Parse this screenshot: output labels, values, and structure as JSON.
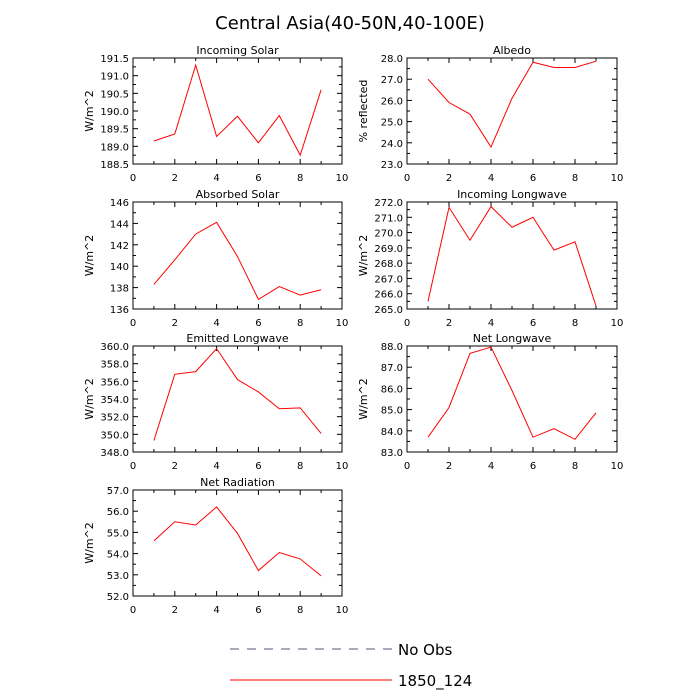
{
  "figure": {
    "title": "Central Asia(40-50N,40-100E)",
    "legend": [
      {
        "label": "No Obs",
        "color": "#555577",
        "dash": true
      },
      {
        "label": "1850_124",
        "color": "#ff0000",
        "dash": false
      }
    ]
  },
  "chart_data": [
    {
      "type": "line",
      "title": "Incoming Solar",
      "ylabel": "W/m^2",
      "xlim": [
        0,
        10
      ],
      "ylim": [
        188.5,
        191.5
      ],
      "xticks": [
        0,
        2,
        4,
        6,
        8,
        10
      ],
      "xtick_labels": [
        "0",
        "2",
        "4",
        "6",
        "8",
        "10"
      ],
      "yticks": [
        188.5,
        189.0,
        189.5,
        190.0,
        190.5,
        191.0,
        191.5
      ],
      "ytick_labels": [
        "188.5",
        "189.0",
        "189.5",
        "190.0",
        "190.5",
        "191.0",
        "191.5"
      ],
      "x": [
        1,
        2,
        3,
        4,
        5,
        6,
        7,
        8,
        9
      ],
      "series": [
        {
          "values": [
            189.15,
            189.35,
            191.3,
            189.28,
            189.85,
            189.1,
            189.87,
            188.75,
            190.6
          ],
          "color": "#ff0000"
        }
      ]
    },
    {
      "type": "line",
      "title": "Albedo",
      "ylabel": "% reflected",
      "xlim": [
        0,
        10
      ],
      "ylim": [
        23.0,
        28.0
      ],
      "xticks": [
        0,
        2,
        4,
        6,
        8,
        10
      ],
      "xtick_labels": [
        "0",
        "2",
        "4",
        "6",
        "8",
        "10"
      ],
      "yticks": [
        23.0,
        24.0,
        25.0,
        26.0,
        27.0,
        28.0
      ],
      "ytick_labels": [
        "23.0",
        "24.0",
        "25.0",
        "26.0",
        "27.0",
        "28.0"
      ],
      "x": [
        1,
        2,
        3,
        4,
        5,
        6,
        7,
        8,
        9
      ],
      "series": [
        {
          "values": [
            27.0,
            25.9,
            25.35,
            23.8,
            26.1,
            27.8,
            27.55,
            27.55,
            27.85
          ],
          "color": "#ff0000"
        }
      ]
    },
    {
      "type": "line",
      "title": "Absorbed Solar",
      "ylabel": "W/m^2",
      "xlim": [
        0,
        10
      ],
      "ylim": [
        136,
        146
      ],
      "xticks": [
        0,
        2,
        4,
        6,
        8,
        10
      ],
      "xtick_labels": [
        "0",
        "2",
        "4",
        "6",
        "8",
        "10"
      ],
      "yticks": [
        136,
        138,
        140,
        142,
        144,
        146
      ],
      "ytick_labels": [
        "136",
        "138",
        "140",
        "142",
        "144",
        "146"
      ],
      "x": [
        1,
        2,
        3,
        4,
        5,
        6,
        7,
        8,
        9
      ],
      "series": [
        {
          "values": [
            138.3,
            140.6,
            143.0,
            144.1,
            140.9,
            136.9,
            138.1,
            137.3,
            137.8
          ],
          "color": "#ff0000"
        }
      ]
    },
    {
      "type": "line",
      "title": "Incoming Longwave",
      "ylabel": "W/m^2",
      "xlim": [
        0,
        10
      ],
      "ylim": [
        265.0,
        272.0
      ],
      "xticks": [
        0,
        2,
        4,
        6,
        8,
        10
      ],
      "xtick_labels": [
        "0",
        "2",
        "4",
        "6",
        "8",
        "10"
      ],
      "yticks": [
        265.0,
        266.0,
        267.0,
        268.0,
        269.0,
        270.0,
        271.0,
        272.0
      ],
      "ytick_labels": [
        "265.0",
        "266.0",
        "267.0",
        "268.0",
        "269.0",
        "270.0",
        "271.0",
        "272.0"
      ],
      "x": [
        1,
        2,
        3,
        4,
        5,
        6,
        7,
        8,
        9
      ],
      "series": [
        {
          "values": [
            265.5,
            271.65,
            269.5,
            271.7,
            270.35,
            271.0,
            268.85,
            269.4,
            265.2
          ],
          "color": "#ff0000"
        }
      ]
    },
    {
      "type": "line",
      "title": "Emitted Longwave",
      "ylabel": "W/m^2",
      "xlim": [
        0,
        10
      ],
      "ylim": [
        348.0,
        360.0
      ],
      "xticks": [
        0,
        2,
        4,
        6,
        8,
        10
      ],
      "xtick_labels": [
        "0",
        "2",
        "4",
        "6",
        "8",
        "10"
      ],
      "yticks": [
        348.0,
        350.0,
        352.0,
        354.0,
        356.0,
        358.0,
        360.0
      ],
      "ytick_labels": [
        "348.0",
        "350.0",
        "352.0",
        "354.0",
        "356.0",
        "358.0",
        "360.0"
      ],
      "x": [
        1,
        2,
        3,
        4,
        5,
        6,
        7,
        8,
        9
      ],
      "series": [
        {
          "values": [
            349.3,
            356.8,
            357.1,
            359.7,
            356.2,
            354.8,
            352.9,
            353.0,
            350.1
          ],
          "color": "#ff0000"
        }
      ]
    },
    {
      "type": "line",
      "title": "Net Longwave",
      "ylabel": "W/m^2",
      "xlim": [
        0,
        10
      ],
      "ylim": [
        83.0,
        88.0
      ],
      "xticks": [
        0,
        2,
        4,
        6,
        8,
        10
      ],
      "xtick_labels": [
        "0",
        "2",
        "4",
        "6",
        "8",
        "10"
      ],
      "yticks": [
        83.0,
        84.0,
        85.0,
        86.0,
        87.0,
        88.0
      ],
      "ytick_labels": [
        "83.0",
        "84.0",
        "85.0",
        "86.0",
        "87.0",
        "88.0"
      ],
      "x": [
        1,
        2,
        3,
        4,
        5,
        6,
        7,
        8,
        9
      ],
      "series": [
        {
          "values": [
            83.7,
            85.1,
            87.65,
            87.95,
            85.9,
            83.7,
            84.1,
            83.6,
            84.85
          ],
          "color": "#ff0000"
        }
      ]
    },
    {
      "type": "line",
      "title": "Net Radiation",
      "ylabel": "W/m^2",
      "xlim": [
        0,
        10
      ],
      "ylim": [
        52.0,
        57.0
      ],
      "xticks": [
        0,
        2,
        4,
        6,
        8,
        10
      ],
      "xtick_labels": [
        "0",
        "2",
        "4",
        "6",
        "8",
        "10"
      ],
      "yticks": [
        52.0,
        53.0,
        54.0,
        55.0,
        56.0,
        57.0
      ],
      "ytick_labels": [
        "52.0",
        "53.0",
        "54.0",
        "55.0",
        "56.0",
        "57.0"
      ],
      "x": [
        1,
        2,
        3,
        4,
        5,
        6,
        7,
        8,
        9
      ],
      "series": [
        {
          "values": [
            54.6,
            55.5,
            55.35,
            56.2,
            54.95,
            53.2,
            54.05,
            53.75,
            52.95
          ],
          "color": "#ff0000"
        }
      ]
    }
  ]
}
